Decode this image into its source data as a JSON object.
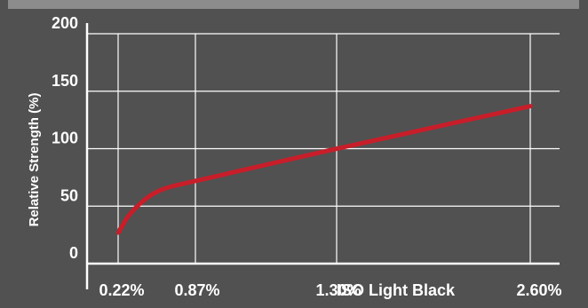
{
  "chart_data": {
    "type": "line",
    "title": "",
    "xlabel": "",
    "ylabel": "Relative Strength (%)",
    "x_ticks": [
      "0.22%",
      "0.87%",
      "1.30%",
      "2.60%"
    ],
    "x_annotation": "ISO Light Black",
    "y_ticks": [
      0,
      50,
      100,
      150,
      200
    ],
    "ylim": [
      0,
      200
    ],
    "grid": true,
    "line_color": "#c81e2a",
    "series": [
      {
        "x": [
          0.22,
          0.3,
          0.4,
          0.5,
          0.6,
          0.7,
          0.87,
          1.3,
          2.6
        ],
        "y": [
          27,
          41,
          52,
          60,
          65,
          68,
          72,
          100,
          137
        ]
      }
    ]
  }
}
